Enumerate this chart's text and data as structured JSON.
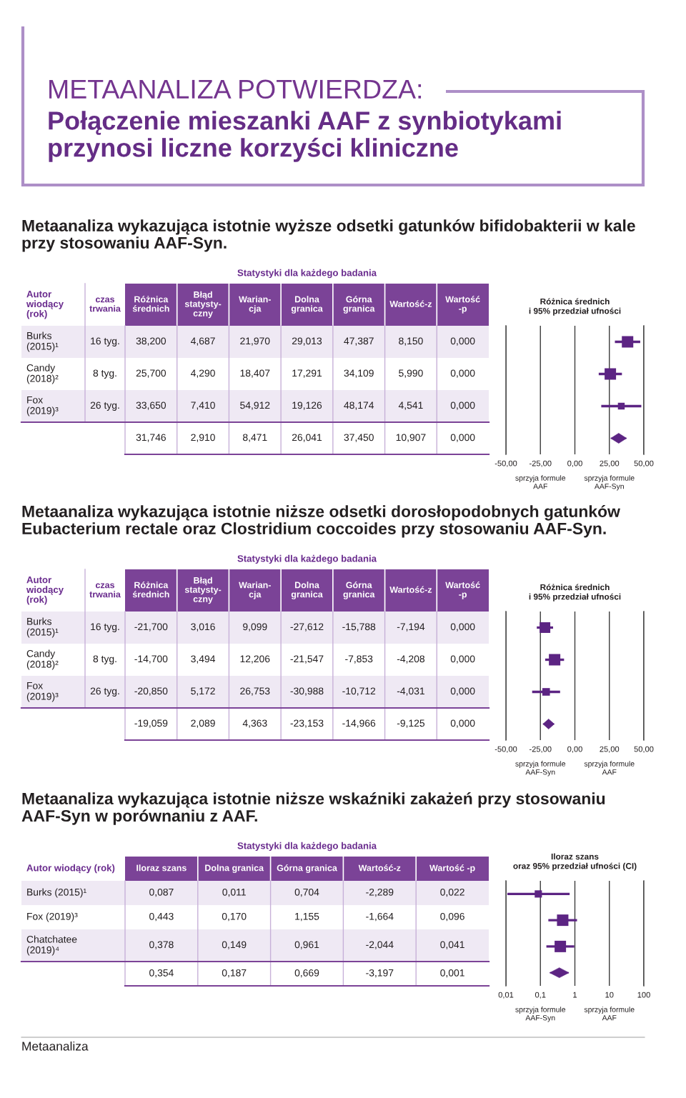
{
  "chart_data": [
    {
      "type": "other",
      "title": "METAANALIZA POTWIERDZA:",
      "subtitle": "Połączenie mieszanki AAF z synbiotykami\nprzynosi liczne korzyści kliniczne",
      "annotations": [
        "Metaanaliza"
      ]
    },
    {
      "type": "other",
      "title": "Metaanaliza wykazująca istotnie wyższe odsetki gatunków bifidobakterii w kale\nprzy stosowaniu AAF-Syn.",
      "subtitle": "Statystyki dla każdego badania",
      "ylabel": "Autor\nwiodący\n(rok)",
      "y2label": "czas\ntrwania",
      "categories": [
        "Różnica\nśrednich",
        "Błąd\nstatysty-\nczny",
        "Warian-\ncja",
        "Dolna\ngranica",
        "Górna\ngranica",
        "Wartość-z",
        "Wartość\n-p"
      ],
      "y_categories": [
        "Burks\n(2015)¹",
        "Candy\n(2018)²",
        "Fox\n(2019)³",
        null
      ],
      "y2_categories": [
        "16 tyg.",
        "8 tyg.",
        "26 tyg.",
        null
      ],
      "cell_labels": [
        [
          "38,200",
          "4,687",
          "21,970",
          "29,013",
          "47,387",
          "8,150",
          "0,000"
        ],
        [
          "25,700",
          "4,290",
          "18,407",
          "17,291",
          "34,109",
          "5,990",
          "0,000"
        ],
        [
          "33,650",
          "7,410",
          "54,912",
          "19,126",
          "48,174",
          "4,541",
          "0,000"
        ],
        [
          "31,746",
          "2,910",
          "8,471",
          "26,041",
          "37,450",
          "10,907",
          "0,000"
        ]
      ]
    },
    {
      "type": "scatter",
      "title": "Różnica średnich\ni 95% przedział ufności",
      "orientation": "horizontal",
      "categories": [
        null,
        null,
        null,
        null
      ],
      "xlim": [
        -50,
        50
      ],
      "xticks": [
        {
          "value": -50,
          "label": "-50,00"
        },
        {
          "value": -25,
          "label": "-25,00"
        },
        {
          "value": 0,
          "label": "0,00"
        },
        {
          "value": 25,
          "label": "25,00"
        },
        {
          "value": 50,
          "label": "50,00"
        }
      ],
      "grid": "x",
      "tick_labels": "x",
      "annotations": [
        "sprzyja formule\nAAF",
        "sprzyja formule\nAAF-Syn"
      ],
      "series": [
        {
          "type": "bubble",
          "marker": "square",
          "color": "#5c2483",
          "values": [
            38.2,
            25.7,
            33.65,
            null
          ],
          "errors": [
            [
              29.013,
              47.387
            ],
            [
              17.291,
              34.109
            ],
            [
              19.126,
              48.174
            ],
            null
          ],
          "sizes": [
            1,
            1,
            0.35,
            null
          ]
        },
        {
          "type": "scatter",
          "marker": "diamond",
          "color": "#5c2483",
          "values": [
            null,
            null,
            null,
            31.746
          ],
          "errors": [
            null,
            null,
            null,
            [
              26.041,
              37.45
            ]
          ]
        }
      ]
    },
    {
      "type": "other",
      "title": "Metaanaliza wykazująca istotnie niższe odsetki dorosłopodobnych gatunków\nEubacterium rectale oraz Clostridium coccoides przy stosowaniu AAF-Syn.",
      "subtitle": "Statystyki dla każdego badania",
      "ylabel": "Autor\nwiodący\n(rok)",
      "y2label": "czas\ntrwania",
      "categories": [
        "Różnica\nśrednich",
        "Błąd\nstatysty-\nczny",
        "Warian-\ncja",
        "Dolna\ngranica",
        "Górna\ngranica",
        "Wartość-z",
        "Wartość\n-p"
      ],
      "y_categories": [
        "Burks\n(2015)¹",
        "Candy\n(2018)²",
        "Fox\n(2019)³",
        null
      ],
      "y2_categories": [
        "16 tyg.",
        "8 tyg.",
        "26 tyg.",
        null
      ],
      "cell_labels": [
        [
          "-21,700",
          "3,016",
          "9,099",
          "-27,612",
          "-15,788",
          "-7,194",
          "0,000"
        ],
        [
          "-14,700",
          "3,494",
          "12,206",
          "-21,547",
          "-7,853",
          "-4,208",
          "0,000"
        ],
        [
          "-20,850",
          "5,172",
          "26,753",
          "-30,988",
          "-10,712",
          "-4,031",
          "0,000"
        ],
        [
          "-19,059",
          "2,089",
          "4,363",
          "-23,153",
          "-14,966",
          "-9,125",
          "0,000"
        ]
      ]
    },
    {
      "type": "scatter",
      "title": "Różnica średnich\ni 95% przedział ufności",
      "orientation": "horizontal",
      "categories": [
        null,
        null,
        null,
        null
      ],
      "xlim": [
        -50,
        50
      ],
      "xticks": [
        {
          "value": -50,
          "label": "-50,00"
        },
        {
          "value": -25,
          "label": "-25,00"
        },
        {
          "value": 0,
          "label": "0,00"
        },
        {
          "value": 25,
          "label": "25,00"
        },
        {
          "value": 50,
          "label": "50,00"
        }
      ],
      "grid": "x",
      "tick_labels": "x",
      "annotations": [
        "sprzyja formule\nAAF-Syn",
        "sprzyja formule\nAAF"
      ],
      "series": [
        {
          "type": "bubble",
          "marker": "square",
          "color": "#5c2483",
          "values": [
            -21.7,
            -14.7,
            -20.85,
            null
          ],
          "errors": [
            [
              -27.612,
              -15.788
            ],
            [
              -21.547,
              -7.853
            ],
            [
              -30.988,
              -10.712
            ],
            null
          ],
          "sizes": [
            0.87,
            1,
            0.44,
            null
          ]
        },
        {
          "type": "scatter",
          "marker": "diamond",
          "color": "#5c2483",
          "values": [
            null,
            null,
            null,
            -19.059
          ],
          "errors": [
            null,
            null,
            null,
            [
              -23.153,
              -14.966
            ]
          ]
        }
      ]
    },
    {
      "type": "other",
      "title": "Metaanaliza wykazująca istotnie niższe wskaźniki zakażeń przy stosowaniu\nAAF-Syn w porównaniu z AAF.",
      "subtitle": "Statystyki dla każdego badania",
      "ylabel": "Autor wiodący (rok)",
      "categories": [
        "Iloraz szans",
        "Dolna granica",
        "Górna granica",
        "Wartość-z",
        "Wartość -p"
      ],
      "y_categories": [
        "Burks (2015)¹",
        "Fox (2019)³",
        "Chatchatee\n(2019)⁴",
        null
      ],
      "cell_labels": [
        [
          "0,087",
          "0,011",
          "0,704",
          "-2,289",
          "0,022"
        ],
        [
          "0,443",
          "0,170",
          "1,155",
          "-1,664",
          "0,096"
        ],
        [
          "0,378",
          "0,149",
          "0,961",
          "-2,044",
          "0,041"
        ],
        [
          "0,354",
          "0,187",
          "0,669",
          "-3,197",
          "0,001"
        ]
      ]
    },
    {
      "type": "scatter",
      "title": "Iloraz szans\noraz 95% przedział ufności (CI)",
      "orientation": "horizontal",
      "categories": [
        null,
        null,
        null,
        null
      ],
      "log": "x",
      "xlim": [
        0.01,
        100
      ],
      "xticks": [
        {
          "value": 0.01,
          "label": "0,01"
        },
        {
          "value": 0.1,
          "label": "0,1"
        },
        1,
        10,
        100
      ],
      "grid": "x",
      "tick_labels": "x",
      "annotations": [
        "sprzyja formule\nAAF-Syn",
        "sprzyja formule\nAAF"
      ],
      "series": [
        {
          "type": "bubble",
          "marker": "square",
          "color": "#5c2483",
          "values": [
            0.087,
            0.443,
            0.378,
            null
          ],
          "errors": [
            [
              0.011,
              0.704
            ],
            [
              0.17,
              1.155
            ],
            [
              0.149,
              0.961
            ],
            null
          ],
          "sizes": [
            0.4,
            1,
            1,
            null
          ]
        },
        {
          "type": "scatter",
          "marker": "diamond",
          "color": "#5c2483",
          "values": [
            null,
            null,
            null,
            0.354
          ],
          "errors": [
            null,
            null,
            null,
            [
              0.187,
              0.669
            ]
          ]
        }
      ]
    }
  ]
}
